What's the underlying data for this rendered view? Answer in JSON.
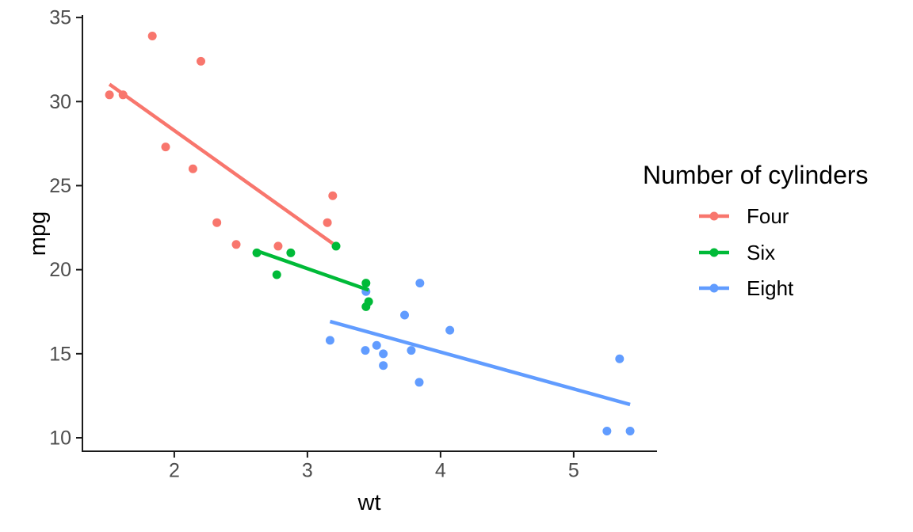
{
  "page": {
    "background": "#ffffff"
  },
  "chart_data": {
    "type": "scatter",
    "title": "",
    "xlabel": "wt",
    "ylabel": "mpg",
    "legend_title": "Number of cylinders",
    "legend_position": "right",
    "grid": false,
    "theme": "classic",
    "xlim": [
      1.31,
      5.62
    ],
    "ylim": [
      9.2,
      35.1
    ],
    "x_ticks": [
      2,
      3,
      4,
      5
    ],
    "y_ticks": [
      10,
      15,
      20,
      25,
      30,
      35
    ],
    "axis_color": "#1a1a1a",
    "tick_label_color": "#4d4d4d",
    "point_radius": 5.5,
    "line_width": 4.5,
    "series": [
      {
        "name": "Four",
        "color": "#F8766D",
        "points": [
          [
            2.32,
            22.8
          ],
          [
            3.19,
            24.4
          ],
          [
            3.15,
            22.8
          ],
          [
            2.2,
            32.4
          ],
          [
            1.615,
            30.4
          ],
          [
            1.835,
            33.9
          ],
          [
            2.465,
            21.5
          ],
          [
            1.935,
            27.3
          ],
          [
            2.14,
            26.0
          ],
          [
            1.513,
            30.4
          ],
          [
            2.78,
            21.4
          ]
        ],
        "trend": {
          "x": [
            1.513,
            3.19
          ],
          "y": [
            31.03,
            21.56
          ]
        }
      },
      {
        "name": "Six",
        "color": "#00BA38",
        "points": [
          [
            2.62,
            21.0
          ],
          [
            2.875,
            21.0
          ],
          [
            3.215,
            21.4
          ],
          [
            3.46,
            18.1
          ],
          [
            3.44,
            19.2
          ],
          [
            3.44,
            17.8
          ],
          [
            2.77,
            19.7
          ]
        ],
        "trend": {
          "x": [
            2.62,
            3.46
          ],
          "y": [
            21.12,
            18.79
          ]
        }
      },
      {
        "name": "Eight",
        "color": "#619CFF",
        "points": [
          [
            3.44,
            18.7
          ],
          [
            3.57,
            14.3
          ],
          [
            4.07,
            16.4
          ],
          [
            3.73,
            17.3
          ],
          [
            3.78,
            15.2
          ],
          [
            5.25,
            10.4
          ],
          [
            5.424,
            10.4
          ],
          [
            5.345,
            14.7
          ],
          [
            3.52,
            15.5
          ],
          [
            3.435,
            15.2
          ],
          [
            3.84,
            13.3
          ],
          [
            3.845,
            19.2
          ],
          [
            3.17,
            15.8
          ],
          [
            3.57,
            15.0
          ]
        ],
        "trend": {
          "x": [
            3.17,
            5.424
          ],
          "y": [
            16.92,
            11.98
          ]
        }
      }
    ]
  }
}
